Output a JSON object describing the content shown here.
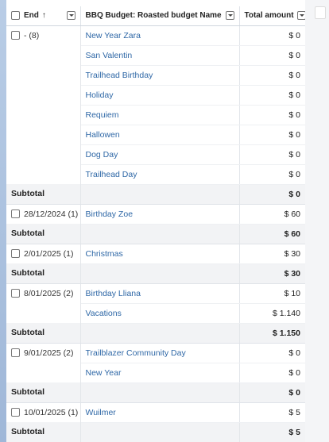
{
  "header": {
    "col_end": "End",
    "col_end_sort": "↑",
    "col_name": "BBQ Budget: Roasted budget Name",
    "col_amount": "Total amount"
  },
  "groups": [
    {
      "label": "- (8)",
      "rows": [
        {
          "name": "New Year Zara",
          "amount": "$ 0"
        },
        {
          "name": "San Valentin",
          "amount": "$ 0"
        },
        {
          "name": "Trailhead Birthday",
          "amount": "$ 0"
        },
        {
          "name": "Holiday",
          "amount": "$ 0"
        },
        {
          "name": "Requiem",
          "amount": "$ 0"
        },
        {
          "name": "Hallowen",
          "amount": "$ 0"
        },
        {
          "name": "Dog Day",
          "amount": "$ 0"
        },
        {
          "name": "Trailhead Day",
          "amount": "$ 0"
        }
      ],
      "subtotal_label": "Subtotal",
      "subtotal": "$ 0"
    },
    {
      "label": "28/12/2024 (1)",
      "rows": [
        {
          "name": "Birthday Zoe",
          "amount": "$ 60"
        }
      ],
      "subtotal_label": "Subtotal",
      "subtotal": "$ 60"
    },
    {
      "label": "2/01/2025 (1)",
      "rows": [
        {
          "name": "Christmas",
          "amount": "$ 30"
        }
      ],
      "subtotal_label": "Subtotal",
      "subtotal": "$ 30"
    },
    {
      "label": "8/01/2025 (2)",
      "rows": [
        {
          "name": "Birthday Lliana",
          "amount": "$ 10"
        },
        {
          "name": "Vacations",
          "amount": "$ 1.140"
        }
      ],
      "subtotal_label": "Subtotal",
      "subtotal": "$ 1.150"
    },
    {
      "label": "9/01/2025 (2)",
      "rows": [
        {
          "name": "Trailblazer Community Day",
          "amount": "$ 0"
        },
        {
          "name": "New Year",
          "amount": "$ 0"
        }
      ],
      "subtotal_label": "Subtotal",
      "subtotal": "$ 0"
    },
    {
      "label": "10/01/2025 (1)",
      "rows": [
        {
          "name": "Wuilmer",
          "amount": "$ 5"
        }
      ],
      "subtotal_label": "Subtotal",
      "subtotal": "$ 5"
    }
  ]
}
